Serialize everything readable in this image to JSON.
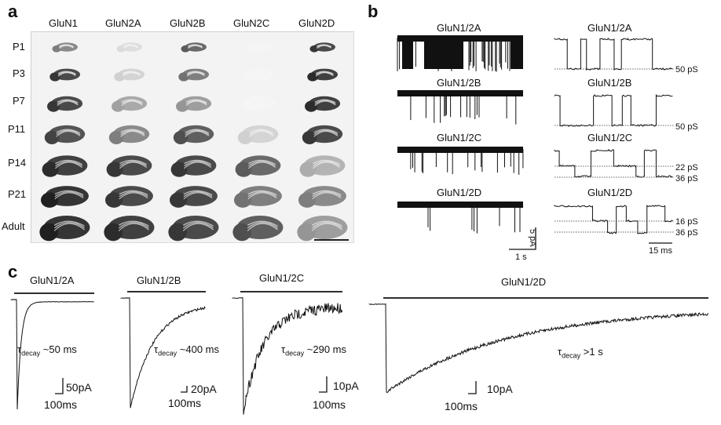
{
  "panels": {
    "a": {
      "letter": "a",
      "columns": [
        "GluN1",
        "GluN2A",
        "GluN2B",
        "GluN2C",
        "GluN2D"
      ],
      "rows": [
        "P1",
        "P3",
        "P7",
        "P11",
        "P14",
        "P21",
        "Adult"
      ]
    },
    "b": {
      "letter": "b",
      "left_labels": [
        "GluN1/2A",
        "GluN1/2B",
        "GluN1/2C",
        "GluN1/2D"
      ],
      "right_labels": [
        "GluN1/2A",
        "GluN1/2B",
        "GluN1/2C",
        "GluN1/2D"
      ],
      "conductances": {
        "a": "50 pS",
        "b": "50 pS",
        "c1": "22 pS",
        "c2": "36 pS",
        "d1": "16 pS",
        "d2": "36 pS"
      },
      "scale_left_y": "5 pA",
      "scale_left_x": "1 s",
      "scale_right_x": "15 ms"
    },
    "c": {
      "letter": "c",
      "traces": [
        {
          "label": "GluN1/2A",
          "tau_sym": "τ",
          "tau_sub": "decay",
          "tau_val": " ~50 ms",
          "scale_y": "50pA",
          "scale_x": "100ms"
        },
        {
          "label": "GluN1/2B",
          "tau_sym": "τ",
          "tau_sub": "decay",
          "tau_val": " ~400 ms",
          "scale_y": "20pA",
          "scale_x": "100ms"
        },
        {
          "label": "GluN1/2C",
          "tau_sym": "τ",
          "tau_sub": "decay",
          "tau_val": " ~290 ms",
          "scale_y": "10pA",
          "scale_x": "100ms"
        },
        {
          "label": "GluN1/2D",
          "tau_sym": "τ",
          "tau_sub": "decay",
          "tau_val": " >1 s",
          "scale_y": "10pA",
          "scale_x": "100ms"
        }
      ]
    }
  }
}
